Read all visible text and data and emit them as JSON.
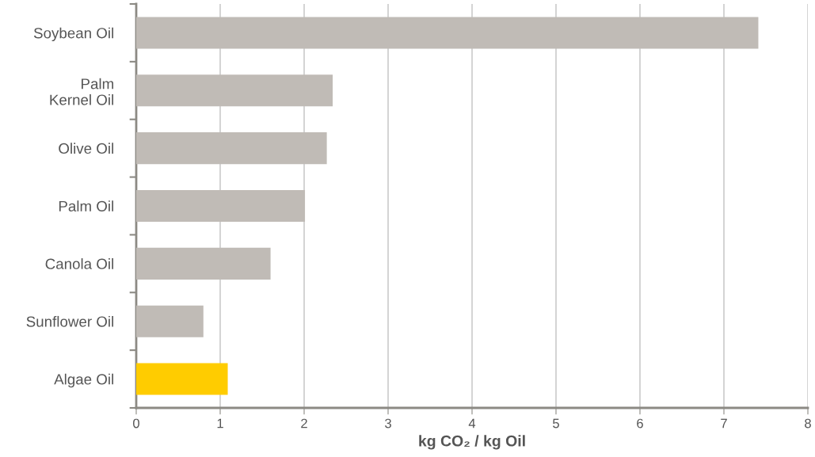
{
  "chart_data": {
    "type": "bar",
    "orientation": "horizontal",
    "categories": [
      "Soybean Oil",
      "Palm\nKernel Oil",
      "Olive Oil",
      "Palm Oil",
      "Canola Oil",
      "Sunflower Oil",
      "Algae Oil"
    ],
    "values": [
      7.41,
      2.34,
      2.27,
      2.01,
      1.6,
      0.8,
      1.09
    ],
    "colors": [
      "#c0bbb6",
      "#c0bbb6",
      "#c0bbb6",
      "#c0bbb6",
      "#c0bbb6",
      "#c0bbb6",
      "#ffcc00"
    ],
    "xlim": [
      0,
      8
    ],
    "xticks": [
      0,
      1,
      2,
      3,
      4,
      5,
      6,
      7,
      8
    ],
    "xlabel": "kg CO₂ / kg Oil",
    "grid": "x"
  }
}
